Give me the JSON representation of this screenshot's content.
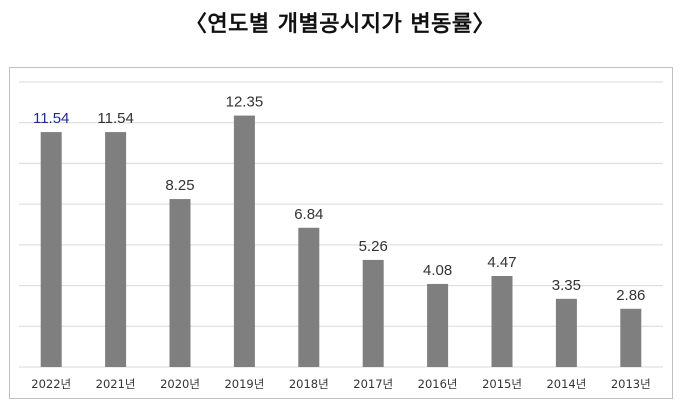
{
  "title": "〈연도별 개별공시지가 변동률〉",
  "chart_data": {
    "type": "bar",
    "title": "〈연도별 개별공시지가 변동률〉",
    "categories": [
      "2022년",
      "2021년",
      "2020년",
      "2019년",
      "2018년",
      "2017년",
      "2016년",
      "2015년",
      "2014년",
      "2013년"
    ],
    "values": [
      11.54,
      11.54,
      8.25,
      12.35,
      6.84,
      5.26,
      4.08,
      4.47,
      3.35,
      2.86
    ],
    "labels": [
      "11.54",
      "11.54",
      "8.25",
      "12.35",
      "6.84",
      "5.26",
      "4.08",
      "4.47",
      "3.35",
      "2.86"
    ],
    "ylim": [
      0,
      14
    ],
    "grid": true,
    "bar_color": "#7f7f7f",
    "highlight_label_color": "#1f2a9e",
    "label_color": "#333333"
  }
}
